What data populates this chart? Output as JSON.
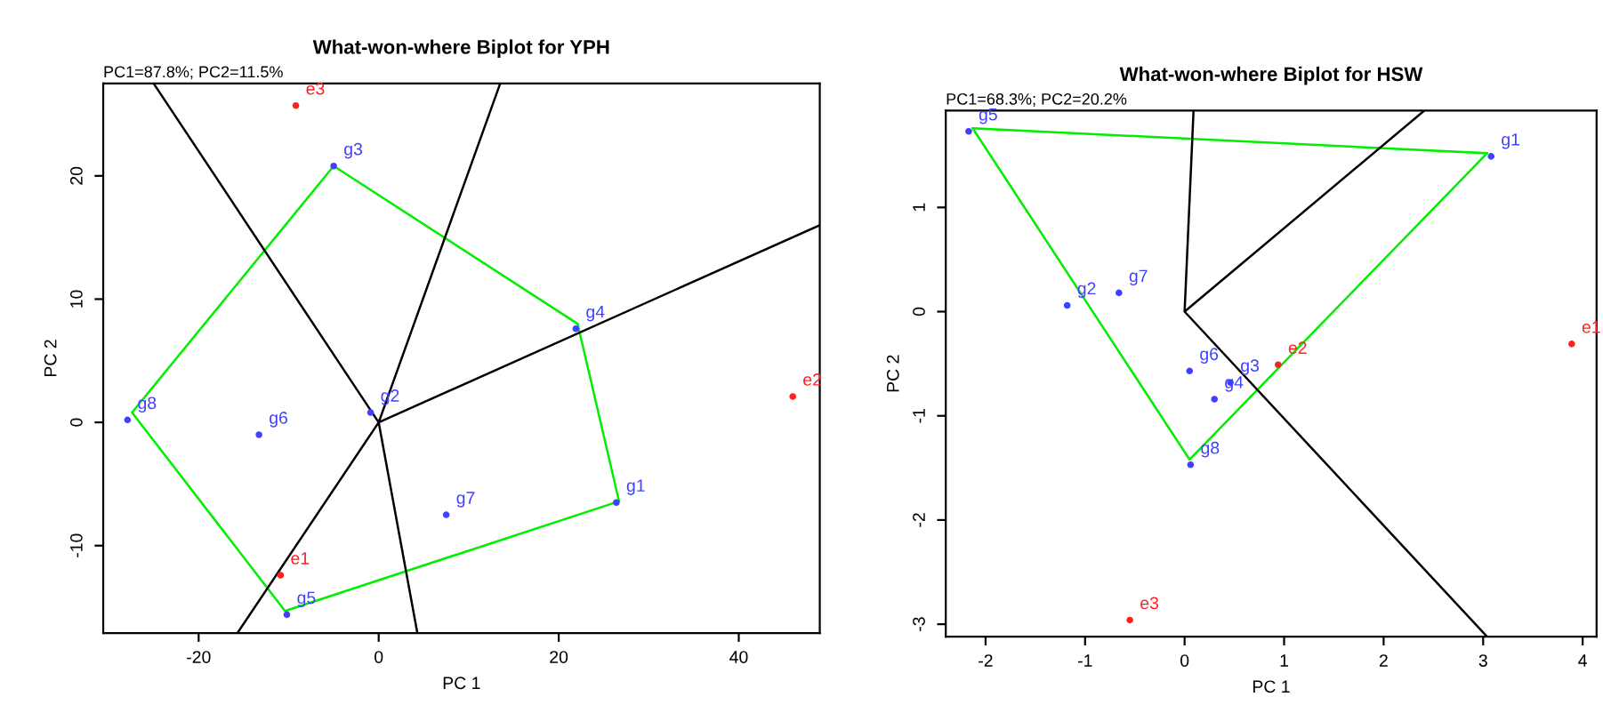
{
  "chart_data": [
    {
      "type": "scatter",
      "title": "What-won-where Biplot for YPH",
      "subtitle": "PC1=87.8%; PC2=11.5%",
      "xlabel": "PC 1",
      "ylabel": "PC 2",
      "xlim": [
        -30.6,
        49.0
      ],
      "ylim": [
        -17.1,
        27.5
      ],
      "xticks": [
        -20,
        0,
        20,
        40
      ],
      "yticks": [
        -10,
        0,
        10,
        20
      ],
      "grid": false,
      "series": [
        {
          "marker": "circle",
          "color": "#4040ff",
          "x": [
            -5.0,
            21.9,
            26.4,
            -10.2,
            -27.9,
            -13.3,
            -0.9,
            7.5
          ],
          "values": [
            20.8,
            7.6,
            -6.5,
            -15.6,
            0.2,
            -1.0,
            0.8,
            -7.5
          ],
          "value_labels": [
            "g3",
            "g4",
            "g1",
            "g5",
            "g8",
            "g6",
            "g2",
            "g7"
          ]
        },
        {
          "marker": "circle",
          "color": "#ff2020",
          "x": [
            -10.9,
            46.0,
            -9.2
          ],
          "values": [
            -12.4,
            2.1,
            25.7
          ],
          "value_labels": [
            "e1",
            "e2",
            "e3"
          ]
        },
        {
          "type": "line",
          "color": "#00ee00",
          "x": [
            -5.0,
            22.1,
            26.7,
            -10.4,
            -27.4,
            -5.0,
            22.1
          ],
          "values": [
            20.8,
            8.0,
            -6.4,
            -15.3,
            0.8,
            20.8,
            8.0
          ]
        },
        {
          "type": "line",
          "color": "#000000",
          "x": [
            -25.0,
            0,
            13.5,
            0,
            49.0,
            0,
            4.3,
            0,
            -15.7
          ],
          "values": [
            27.5,
            0,
            27.5,
            0,
            16.0,
            0,
            -17.1,
            0,
            -17.1
          ]
        }
      ]
    },
    {
      "type": "scatter",
      "title": "What-won-where Biplot for HSW",
      "subtitle": "PC1=68.3%; PC2=20.2%",
      "xlabel": "PC 1",
      "ylabel": "PC 2",
      "xlim": [
        -2.4,
        4.14
      ],
      "ylim": [
        -3.12,
        1.93
      ],
      "xticks": [
        -2,
        -1,
        0,
        1,
        2,
        3,
        4
      ],
      "yticks": [
        -3,
        -2,
        -1,
        0,
        1
      ],
      "grid": false,
      "series": [
        {
          "marker": "circle",
          "color": "#4040ff",
          "x": [
            -2.17,
            3.08,
            -1.18,
            -0.66,
            0.05,
            0.46,
            0.3,
            0.06
          ],
          "values": [
            1.73,
            1.49,
            0.06,
            0.18,
            -0.57,
            -0.68,
            -0.84,
            -1.47
          ],
          "value_labels": [
            "g5",
            "g1",
            "g2",
            "g7",
            "g6",
            "g3",
            "g4",
            "g8"
          ]
        },
        {
          "marker": "circle",
          "color": "#ff2020",
          "x": [
            3.89,
            0.94,
            -0.55
          ],
          "values": [
            -0.31,
            -0.51,
            -2.96
          ],
          "value_labels": [
            "e1",
            "e2",
            "e3"
          ]
        },
        {
          "type": "line",
          "color": "#00ee00",
          "x": [
            -2.13,
            3.04,
            0.05,
            -2.13,
            3.04
          ],
          "values": [
            1.76,
            1.52,
            -1.42,
            1.76,
            1.52
          ]
        },
        {
          "type": "line",
          "color": "#000000",
          "x": [
            0.09,
            0,
            2.41,
            0,
            3.04
          ],
          "values": [
            1.93,
            0,
            1.93,
            0,
            -3.12
          ]
        }
      ]
    }
  ]
}
